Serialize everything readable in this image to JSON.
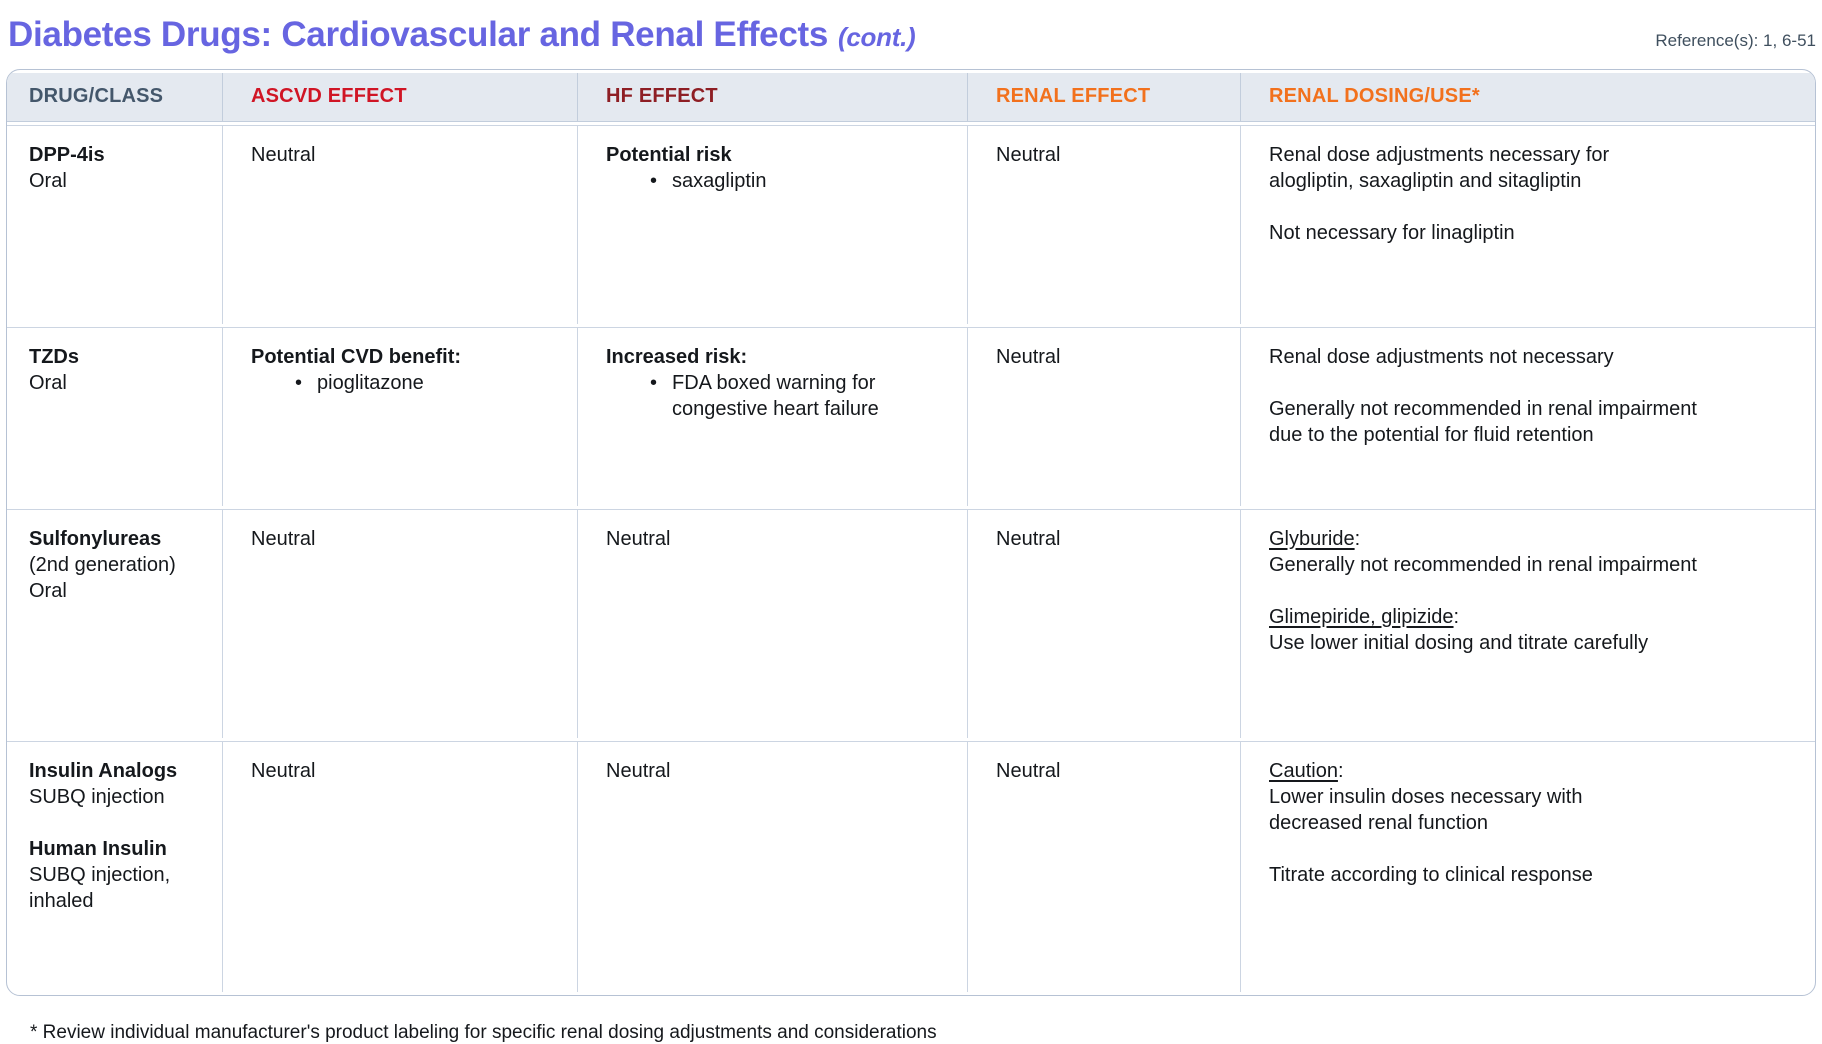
{
  "page": {
    "title": "Diabetes Drugs: Cardiovascular and Renal Effects",
    "title_suffix": "(cont.)",
    "reference": "Reference(s): 1, 6-51",
    "footnote": "* Review individual manufacturer's product labeling for specific renal dosing adjustments and considerations"
  },
  "colors": {
    "title_accent": "#6765e1",
    "header_bg": "#e4e9f0",
    "drug_class_header": "#44576b",
    "ascvd_header": "#d01525",
    "hf_header": "#8e1e24",
    "renal_header": "#f2711d",
    "border": "#b6c2d4"
  },
  "table": {
    "columns": [
      {
        "id": "drug",
        "label": "DRUG/CLASS",
        "color": "#44576b"
      },
      {
        "id": "ascvd",
        "label": "ASCVD EFFECT",
        "color": "#d01525"
      },
      {
        "id": "hf",
        "label": "HF EFFECT",
        "color": "#8e1e24"
      },
      {
        "id": "renal",
        "label": "RENAL EFFECT",
        "color": "#f2711d"
      },
      {
        "id": "dosing",
        "label": "RENAL DOSING/USE*",
        "color": "#f2711d"
      }
    ],
    "rows": [
      {
        "drug": [
          {
            "t": "DPP-4is",
            "b": true
          },
          {
            "t": "Oral"
          }
        ],
        "ascvd": [
          {
            "t": "Neutral"
          }
        ],
        "hf": [
          {
            "t": "Potential risk",
            "b": true
          },
          {
            "t": "saxagliptin",
            "bullet": true
          }
        ],
        "renal": [
          {
            "t": "Neutral"
          }
        ],
        "dosing": [
          {
            "t": "Renal dose adjustments necessary for"
          },
          {
            "t": "alogliptin, saxagliptin and sitagliptin"
          },
          {
            "sp": true
          },
          {
            "t": "Not necessary for linagliptin"
          }
        ]
      },
      {
        "drug": [
          {
            "t": "TZDs",
            "b": true
          },
          {
            "t": "Oral"
          }
        ],
        "ascvd": [
          {
            "t": "Potential CVD benefit:",
            "b": true
          },
          {
            "t": "pioglitazone",
            "bullet": true
          }
        ],
        "hf": [
          {
            "t": "Increased risk:",
            "b": true
          },
          {
            "t": "FDA boxed warning for",
            "bullet": true
          },
          {
            "t": "congestive heart failure",
            "indent": true
          }
        ],
        "renal": [
          {
            "t": "Neutral"
          }
        ],
        "dosing": [
          {
            "t": "Renal dose adjustments not necessary"
          },
          {
            "sp": true
          },
          {
            "t": "Generally not recommended in renal impairment"
          },
          {
            "t": "due to the potential for fluid retention"
          }
        ]
      },
      {
        "drug": [
          {
            "t": "Sulfonylureas",
            "b": true
          },
          {
            "t": "(2nd generation)"
          },
          {
            "t": "Oral"
          }
        ],
        "ascvd": [
          {
            "t": "Neutral"
          }
        ],
        "hf": [
          {
            "t": "Neutral"
          }
        ],
        "renal": [
          {
            "t": "Neutral"
          }
        ],
        "dosing": [
          {
            "u": "Glyburide",
            "t": ":"
          },
          {
            "t": "Generally not recommended in renal impairment"
          },
          {
            "sp": true
          },
          {
            "u": "Glimepiride, glipizide",
            "t": ":"
          },
          {
            "t": "Use lower initial dosing and titrate carefully"
          }
        ]
      },
      {
        "drug": [
          {
            "t": "Insulin Analogs",
            "b": true
          },
          {
            "t": "SUBQ injection"
          },
          {
            "sp": true
          },
          {
            "t": "Human Insulin",
            "b": true
          },
          {
            "t": "SUBQ injection,"
          },
          {
            "t": "inhaled"
          }
        ],
        "ascvd": [
          {
            "t": "Neutral"
          }
        ],
        "hf": [
          {
            "t": "Neutral"
          }
        ],
        "renal": [
          {
            "t": "Neutral"
          }
        ],
        "dosing": [
          {
            "u": "Caution",
            "t": ":"
          },
          {
            "t": "Lower insulin doses necessary with"
          },
          {
            "t": "decreased renal function"
          },
          {
            "sp": true
          },
          {
            "t": "Titrate according to clinical response"
          }
        ]
      }
    ]
  }
}
